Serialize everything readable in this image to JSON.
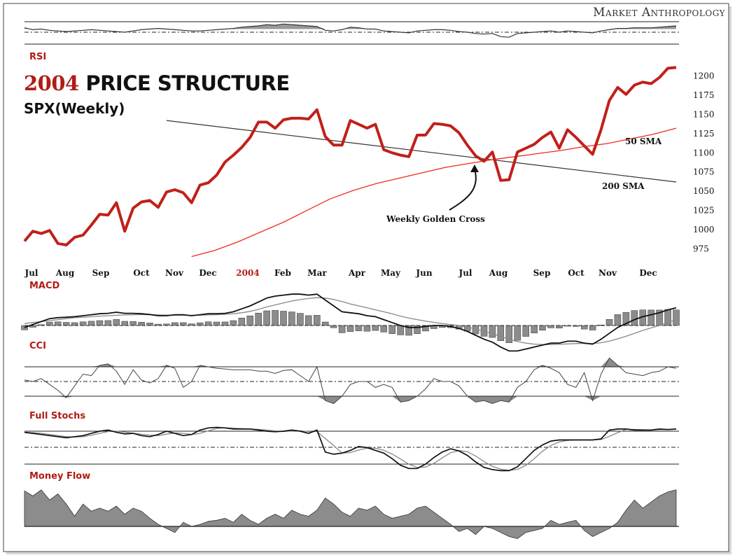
{
  "header": {
    "brand": "Market Anthropology",
    "title_year": "2004",
    "title_rest": " PRICE STRUCTURE",
    "subtitle": "SPX(Weekly)"
  },
  "panels": {
    "rsi": "RSI",
    "macd": "MACD",
    "cci": "CCI",
    "stoch": "Full Stochs",
    "mfi": "Money Flow"
  },
  "colors": {
    "price": "#c0201a",
    "sma50": "#ee2a22",
    "sma200": "#222222",
    "title_red": "#b01c16",
    "histogram_fill": "#8c8c8c"
  },
  "chart_data": {
    "type": "line",
    "title": "2004 PRICE STRUCTURE",
    "subtitle": "SPX(Weekly)",
    "months": [
      "Jul",
      "Aug",
      "Sep",
      "Oct",
      "Nov",
      "Dec",
      "2004",
      "Feb",
      "Mar",
      "Apr",
      "May",
      "Jun",
      "Jul",
      "Aug",
      "Sep",
      "Oct",
      "Nov",
      "Dec"
    ],
    "ylim": [
      960,
      1215
    ],
    "y_ticks": [
      975,
      1000,
      1025,
      1050,
      1075,
      1100,
      1125,
      1150,
      1175,
      1200
    ],
    "series": [
      {
        "name": "SPX",
        "color": "#c0201a",
        "values": [
          985,
          998,
          995,
          999,
          982,
          980,
          990,
          993,
          1006,
          1020,
          1019,
          1035,
          998,
          1028,
          1036,
          1038,
          1029,
          1049,
          1052,
          1048,
          1035,
          1058,
          1061,
          1071,
          1088,
          1097,
          1107,
          1120,
          1140,
          1140,
          1132,
          1143,
          1145,
          1145,
          1144,
          1156,
          1121,
          1110,
          1110,
          1142,
          1137,
          1132,
          1137,
          1104,
          1100,
          1097,
          1095,
          1123,
          1123,
          1138,
          1137,
          1135,
          1126,
          1110,
          1096,
          1089,
          1101,
          1064,
          1065,
          1101,
          1106,
          1111,
          1120,
          1127,
          1106,
          1130,
          1120,
          1109,
          1098,
          1130,
          1168,
          1185,
          1176,
          1188,
          1192,
          1190,
          1198,
          1210,
          1211
        ]
      },
      {
        "name": "50 SMA",
        "color": "#ee2a22",
        "annotation": "50 SMA",
        "start_index": 24,
        "start_value": 965,
        "end_value": 1132,
        "values_sampled": [
          965,
          973,
          984,
          997,
          1010,
          1025,
          1040,
          1051,
          1060,
          1067,
          1074,
          1081,
          1086,
          1091,
          1095,
          1099,
          1103,
          1108,
          1112,
          1118,
          1124,
          1132
        ]
      },
      {
        "name": "200 SMA",
        "color": "#222222",
        "annotation": "200 SMA",
        "start_index": 24,
        "start_value": 1142,
        "end_value": 1062
      }
    ],
    "annotations": [
      {
        "text": "Weekly Golden Cross",
        "at_index": 56,
        "at_value": 1089
      },
      {
        "text": "50 SMA"
      },
      {
        "text": "200 SMA"
      }
    ],
    "indicators": {
      "rsi": {
        "label": "RSI",
        "values": [
          62,
          59,
          60,
          58,
          57,
          56,
          57,
          58,
          59,
          58,
          57,
          56,
          55,
          57,
          59,
          60,
          61,
          60,
          59,
          58,
          57,
          57,
          58,
          59,
          60,
          61,
          63,
          64,
          65,
          67,
          66,
          68,
          67,
          66,
          65,
          64,
          58,
          57,
          59,
          63,
          62,
          60,
          60,
          57,
          56,
          55,
          54,
          57,
          58,
          59,
          59,
          58,
          56,
          55,
          53,
          52,
          53,
          48,
          47,
          53,
          54,
          55,
          56,
          57,
          55,
          57,
          56,
          55,
          54,
          57,
          59,
          61,
          61,
          62,
          62,
          62,
          63,
          64,
          65
        ]
      },
      "macd": {
        "label": "MACD",
        "macd_line": [
          -0.1,
          0.05,
          0.2,
          0.35,
          0.4,
          0.42,
          0.45,
          0.5,
          0.55,
          0.6,
          0.62,
          0.68,
          0.62,
          0.62,
          0.6,
          0.56,
          0.5,
          0.5,
          0.55,
          0.55,
          0.5,
          0.55,
          0.6,
          0.6,
          0.62,
          0.7,
          0.85,
          1.0,
          1.2,
          1.4,
          1.5,
          1.55,
          1.6,
          1.6,
          1.55,
          1.6,
          1.3,
          1.0,
          0.7,
          0.65,
          0.6,
          0.5,
          0.45,
          0.3,
          0.15,
          0.0,
          -0.1,
          -0.1,
          -0.05,
          0.0,
          0.0,
          -0.05,
          -0.15,
          -0.3,
          -0.5,
          -0.7,
          -0.85,
          -1.1,
          -1.3,
          -1.3,
          -1.2,
          -1.1,
          -1.0,
          -0.9,
          -0.9,
          -0.8,
          -0.8,
          -0.9,
          -0.95,
          -0.7,
          -0.4,
          -0.1,
          0.1,
          0.3,
          0.45,
          0.55,
          0.65,
          0.8,
          0.9
        ],
        "signal_line": [
          0.1,
          0.15,
          0.2,
          0.25,
          0.3,
          0.35,
          0.4,
          0.42,
          0.45,
          0.48,
          0.5,
          0.52,
          0.54,
          0.55,
          0.56,
          0.55,
          0.54,
          0.53,
          0.52,
          0.52,
          0.52,
          0.53,
          0.54,
          0.55,
          0.57,
          0.6,
          0.65,
          0.72,
          0.82,
          0.95,
          1.05,
          1.15,
          1.25,
          1.32,
          1.38,
          1.42,
          1.4,
          1.33,
          1.22,
          1.1,
          1.0,
          0.9,
          0.8,
          0.7,
          0.6,
          0.48,
          0.38,
          0.3,
          0.22,
          0.16,
          0.1,
          0.05,
          0.0,
          -0.08,
          -0.18,
          -0.3,
          -0.42,
          -0.56,
          -0.7,
          -0.82,
          -0.9,
          -0.95,
          -0.97,
          -0.97,
          -0.96,
          -0.94,
          -0.92,
          -0.91,
          -0.92,
          -0.88,
          -0.8,
          -0.68,
          -0.55,
          -0.4,
          -0.25,
          -0.12,
          0.0,
          0.15,
          0.3
        ]
      },
      "cci": {
        "label": "CCI",
        "values": [
          10,
          0,
          20,
          -20,
          -60,
          -110,
          -30,
          50,
          40,
          110,
          120,
          70,
          -20,
          80,
          10,
          -10,
          20,
          110,
          90,
          -40,
          0,
          110,
          100,
          90,
          85,
          80,
          80,
          80,
          70,
          70,
          55,
          75,
          80,
          40,
          0,
          100,
          -130,
          -150,
          -100,
          -20,
          0,
          0,
          -40,
          -20,
          -40,
          -140,
          -130,
          -100,
          -50,
          20,
          0,
          0,
          -30,
          -100,
          -140,
          -130,
          -150,
          -130,
          -140,
          -40,
          0,
          80,
          110,
          90,
          60,
          -20,
          -40,
          60,
          -130,
          50,
          160,
          110,
          60,
          50,
          40,
          60,
          70,
          100,
          90
        ]
      },
      "stoch": {
        "label": "Full Stochs",
        "k": [
          78,
          76,
          74,
          72,
          70,
          68,
          70,
          72,
          76,
          80,
          82,
          78,
          75,
          76,
          72,
          70,
          74,
          80,
          76,
          72,
          74,
          82,
          86,
          87,
          86,
          84,
          84,
          84,
          82,
          80,
          79,
          80,
          82,
          80,
          76,
          82,
          42,
          38,
          40,
          45,
          52,
          50,
          45,
          40,
          30,
          18,
          12,
          12,
          20,
          32,
          42,
          48,
          44,
          36,
          24,
          14,
          10,
          8,
          8,
          15,
          30,
          45,
          55,
          62,
          64,
          64,
          64,
          64,
          64,
          66,
          82,
          84,
          84,
          82,
          82,
          82,
          84,
          83,
          84
        ]
      },
      "mfi": {
        "label": "Money Flow",
        "values": [
          75,
          70,
          76,
          66,
          72,
          62,
          50,
          62,
          55,
          58,
          55,
          60,
          52,
          58,
          55,
          48,
          42,
          38,
          34,
          44,
          40,
          42,
          45,
          46,
          48,
          44,
          52,
          46,
          42,
          48,
          52,
          48,
          56,
          52,
          50,
          56,
          68,
          62,
          54,
          50,
          58,
          56,
          60,
          52,
          48,
          50,
          52,
          58,
          60,
          54,
          48,
          42,
          35,
          38,
          32,
          40,
          38,
          34,
          30,
          28,
          34,
          36,
          38,
          46,
          42,
          44,
          46,
          36,
          30,
          34,
          38,
          44,
          56,
          66,
          58,
          64,
          70,
          74,
          76
        ]
      }
    }
  }
}
